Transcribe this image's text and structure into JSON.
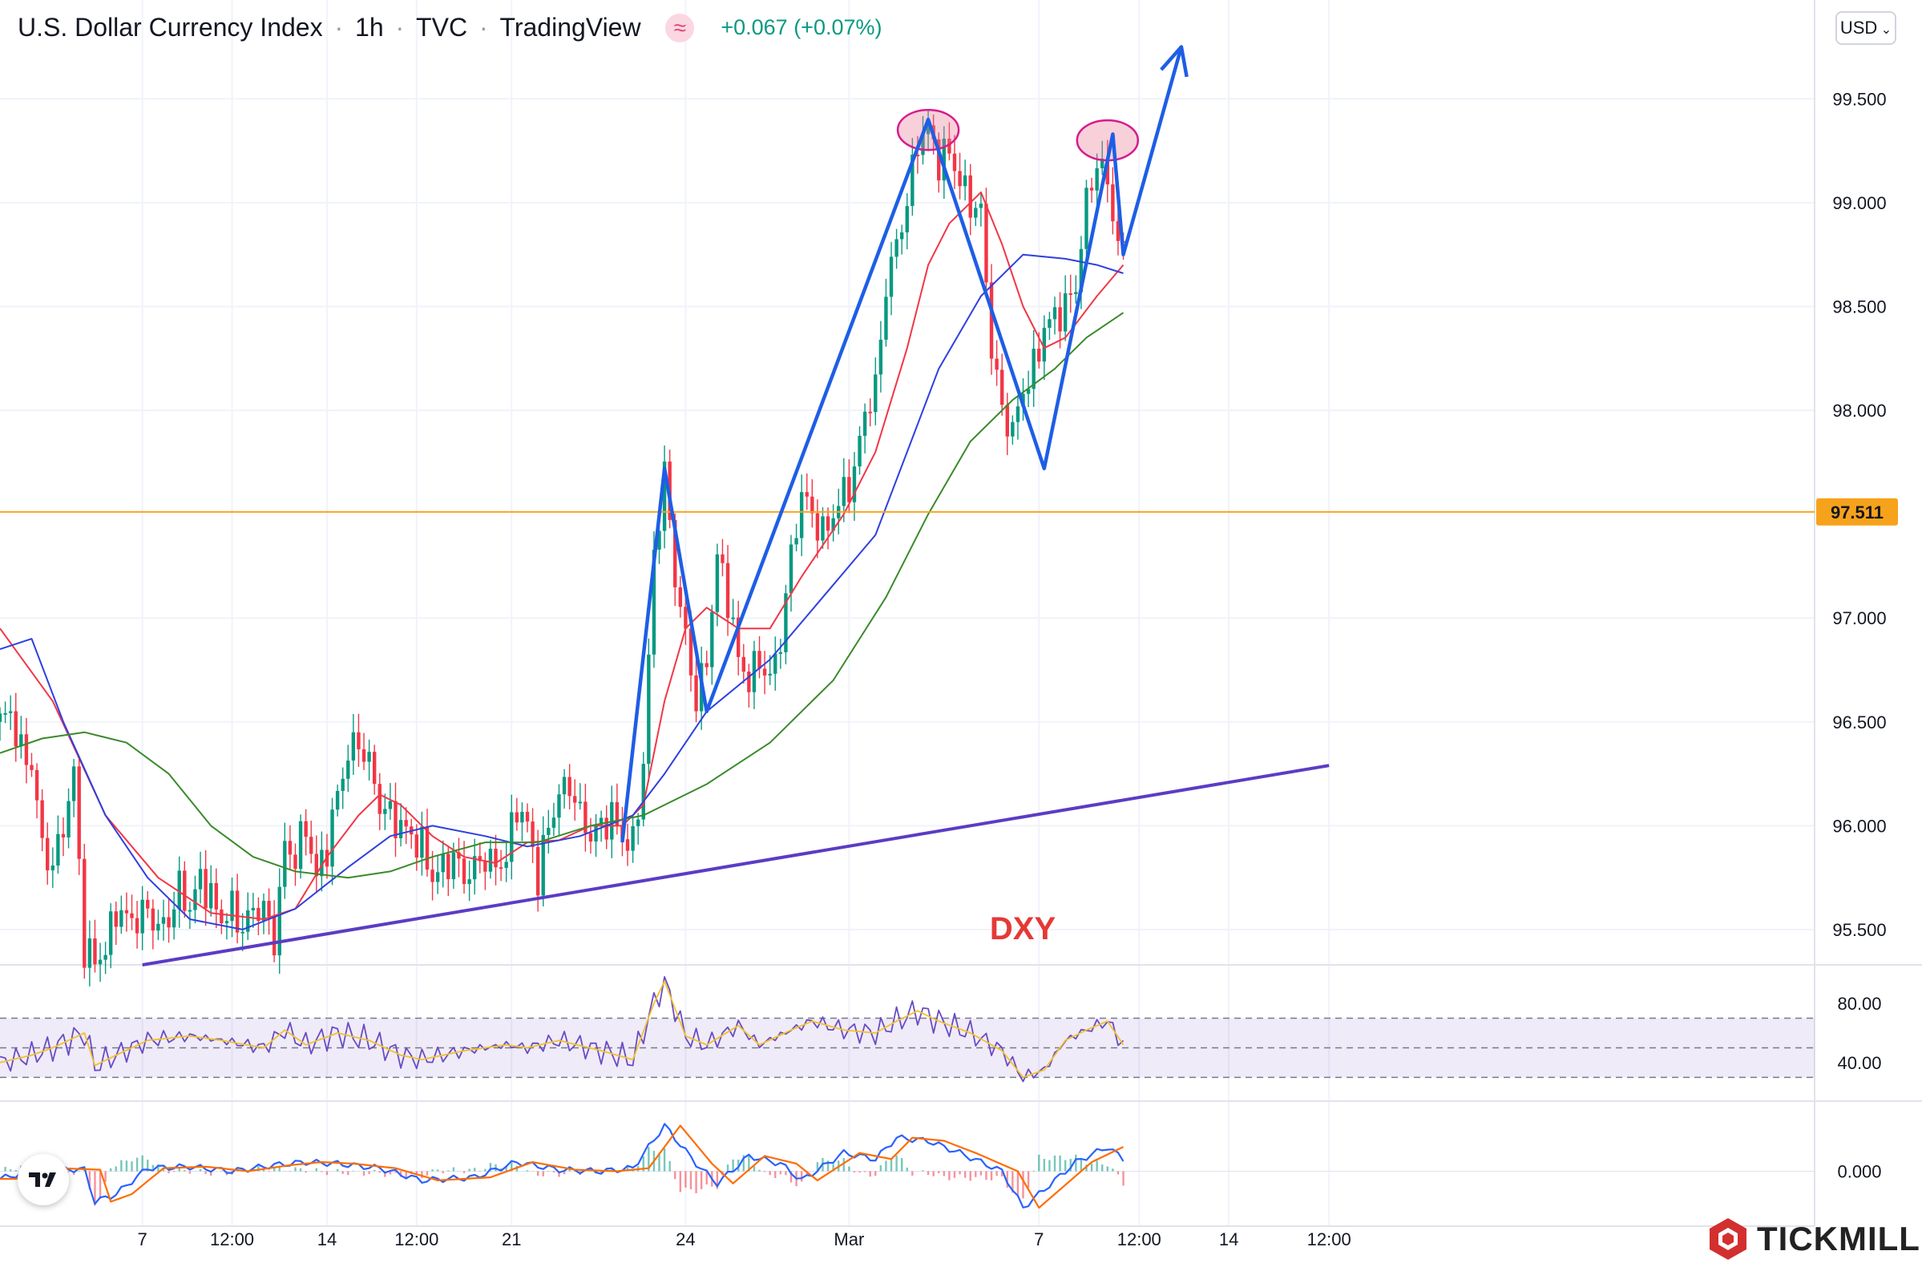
{
  "header": {
    "symbol": "U.S. Dollar Currency Index",
    "sep": "·",
    "interval": "1h",
    "exchange": "TVC",
    "source": "TradingView",
    "change": "+0.067 (+0.07%)"
  },
  "currency_button": "USD",
  "price_label": "97.511",
  "brand": "TICKMILL",
  "annotation": "DXY",
  "colors": {
    "up": "#089981",
    "down": "#f23645",
    "ma_fast": "#f23645",
    "ma_mid": "#2f3fe0",
    "ma_slow": "#3a8a2a",
    "pattern": "#1e5ee6",
    "trendline": "#5b3cc4",
    "level": "#f7a21b",
    "rsi": "#6a4bc4",
    "rsi_ma": "#f0c22b",
    "macd": "#2962ff",
    "signal": "#ff6d00"
  },
  "chart_data": {
    "type": "line",
    "title": "U.S. Dollar Currency Index · 1h · TVC",
    "price_axis": {
      "ylim": [
        95.33,
        99.86
      ],
      "ticks": [
        99.5,
        99.0,
        98.5,
        98.0,
        97.0,
        96.5,
        96.0,
        95.5
      ],
      "tick_labels": [
        "99.500",
        "99.000",
        "98.500",
        "98.000",
        "97.000",
        "96.500",
        "96.000",
        "95.500"
      ]
    },
    "time_axis": {
      "tick_labels": [
        "7",
        "12:00",
        "14",
        "12:00",
        "21",
        "24",
        "Mar",
        "7",
        "12:00",
        "14",
        "12:00"
      ],
      "tick_bars": [
        27,
        44,
        62,
        79,
        97,
        130,
        161,
        197,
        216,
        233,
        252
      ],
      "bar_count": 265
    },
    "price_path": [
      [
        0,
        96.5
      ],
      [
        2,
        96.55
      ],
      [
        4,
        96.35
      ],
      [
        6,
        96.3
      ],
      [
        8,
        95.9
      ],
      [
        10,
        95.8
      ],
      [
        12,
        96.0
      ],
      [
        14,
        96.25
      ],
      [
        16,
        95.4
      ],
      [
        18,
        95.35
      ],
      [
        20,
        95.4
      ],
      [
        22,
        95.6
      ],
      [
        24,
        95.55
      ],
      [
        26,
        95.55
      ],
      [
        28,
        95.6
      ],
      [
        30,
        95.5
      ],
      [
        32,
        95.55
      ],
      [
        34,
        95.7
      ],
      [
        36,
        95.6
      ],
      [
        38,
        95.75
      ],
      [
        40,
        95.65
      ],
      [
        42,
        95.55
      ],
      [
        44,
        95.6
      ],
      [
        46,
        95.5
      ],
      [
        48,
        95.6
      ],
      [
        50,
        95.6
      ],
      [
        52,
        95.45
      ],
      [
        54,
        95.9
      ],
      [
        56,
        95.85
      ],
      [
        58,
        96.0
      ],
      [
        60,
        95.75
      ],
      [
        62,
        95.9
      ],
      [
        64,
        96.15
      ],
      [
        66,
        96.35
      ],
      [
        68,
        96.4
      ],
      [
        70,
        96.3
      ],
      [
        72,
        96.1
      ],
      [
        74,
        96.05
      ],
      [
        76,
        96.0
      ],
      [
        78,
        95.95
      ],
      [
        80,
        95.9
      ],
      [
        82,
        95.75
      ],
      [
        84,
        95.8
      ],
      [
        86,
        95.85
      ],
      [
        88,
        95.75
      ],
      [
        90,
        95.8
      ],
      [
        92,
        95.85
      ],
      [
        94,
        95.8
      ],
      [
        96,
        95.85
      ],
      [
        98,
        96.1
      ],
      [
        100,
        96.0
      ],
      [
        102,
        95.75
      ],
      [
        104,
        96.0
      ],
      [
        106,
        96.15
      ],
      [
        108,
        96.2
      ],
      [
        110,
        96.05
      ],
      [
        112,
        95.95
      ],
      [
        114,
        96.0
      ],
      [
        116,
        96.05
      ],
      [
        118,
        95.95
      ],
      [
        120,
        95.9
      ],
      [
        122,
        96.3
      ],
      [
        124,
        97.3
      ],
      [
        126,
        97.7
      ],
      [
        128,
        97.2
      ],
      [
        130,
        96.9
      ],
      [
        132,
        96.6
      ],
      [
        134,
        96.8
      ],
      [
        136,
        97.3
      ],
      [
        138,
        97.1
      ],
      [
        140,
        96.8
      ],
      [
        142,
        96.7
      ],
      [
        144,
        96.8
      ],
      [
        146,
        96.7
      ],
      [
        148,
        96.9
      ],
      [
        150,
        97.3
      ],
      [
        152,
        97.6
      ],
      [
        154,
        97.5
      ],
      [
        156,
        97.4
      ],
      [
        158,
        97.5
      ],
      [
        160,
        97.6
      ],
      [
        162,
        97.7
      ],
      [
        164,
        98.0
      ],
      [
        166,
        98.1
      ],
      [
        168,
        98.6
      ],
      [
        170,
        98.8
      ],
      [
        172,
        99.0
      ],
      [
        174,
        99.3
      ],
      [
        176,
        99.35
      ],
      [
        178,
        99.2
      ],
      [
        180,
        99.25
      ],
      [
        182,
        99.1
      ],
      [
        184,
        99.0
      ],
      [
        186,
        98.95
      ],
      [
        188,
        98.3
      ],
      [
        190,
        98.0
      ],
      [
        192,
        97.9
      ],
      [
        194,
        98.1
      ],
      [
        196,
        98.2
      ],
      [
        198,
        98.4
      ],
      [
        200,
        98.45
      ],
      [
        202,
        98.5
      ],
      [
        204,
        98.6
      ],
      [
        206,
        99.0
      ],
      [
        208,
        99.2
      ],
      [
        210,
        99.1
      ],
      [
        212,
        98.8
      ],
      [
        213,
        98.75
      ]
    ],
    "series": [
      {
        "name": "MA fast (red)",
        "points": [
          [
            0,
            96.95
          ],
          [
            10,
            96.6
          ],
          [
            20,
            96.05
          ],
          [
            30,
            95.75
          ],
          [
            40,
            95.58
          ],
          [
            50,
            95.55
          ],
          [
            56,
            95.6
          ],
          [
            62,
            95.85
          ],
          [
            68,
            96.05
          ],
          [
            72,
            96.15
          ],
          [
            76,
            96.1
          ],
          [
            82,
            95.95
          ],
          [
            88,
            95.85
          ],
          [
            94,
            95.82
          ],
          [
            100,
            95.92
          ],
          [
            106,
            95.93
          ],
          [
            112,
            96.0
          ],
          [
            118,
            96.0
          ],
          [
            122,
            96.1
          ],
          [
            126,
            96.6
          ],
          [
            130,
            96.95
          ],
          [
            134,
            97.05
          ],
          [
            140,
            96.95
          ],
          [
            146,
            96.95
          ],
          [
            152,
            97.2
          ],
          [
            160,
            97.5
          ],
          [
            166,
            97.8
          ],
          [
            172,
            98.3
          ],
          [
            176,
            98.7
          ],
          [
            180,
            98.9
          ],
          [
            186,
            99.05
          ],
          [
            190,
            98.8
          ],
          [
            194,
            98.5
          ],
          [
            198,
            98.3
          ],
          [
            202,
            98.35
          ],
          [
            208,
            98.55
          ],
          [
            213,
            98.7
          ]
        ]
      },
      {
        "name": "MA mid (blue)",
        "points": [
          [
            0,
            96.85
          ],
          [
            6,
            96.9
          ],
          [
            12,
            96.5
          ],
          [
            20,
            96.05
          ],
          [
            28,
            95.75
          ],
          [
            36,
            95.55
          ],
          [
            46,
            95.5
          ],
          [
            56,
            95.6
          ],
          [
            66,
            95.8
          ],
          [
            74,
            95.95
          ],
          [
            82,
            96.0
          ],
          [
            92,
            95.95
          ],
          [
            100,
            95.9
          ],
          [
            110,
            95.95
          ],
          [
            120,
            96.05
          ],
          [
            126,
            96.25
          ],
          [
            134,
            96.55
          ],
          [
            146,
            96.8
          ],
          [
            156,
            97.1
          ],
          [
            166,
            97.4
          ],
          [
            172,
            97.8
          ],
          [
            178,
            98.2
          ],
          [
            186,
            98.55
          ],
          [
            194,
            98.75
          ],
          [
            202,
            98.73
          ],
          [
            208,
            98.7
          ],
          [
            213,
            98.66
          ]
        ]
      },
      {
        "name": "MA slow (green)",
        "points": [
          [
            0,
            96.35
          ],
          [
            8,
            96.42
          ],
          [
            16,
            96.45
          ],
          [
            24,
            96.4
          ],
          [
            32,
            96.25
          ],
          [
            40,
            96.0
          ],
          [
            48,
            95.85
          ],
          [
            56,
            95.78
          ],
          [
            66,
            95.75
          ],
          [
            74,
            95.78
          ],
          [
            82,
            95.85
          ],
          [
            92,
            95.92
          ],
          [
            102,
            95.92
          ],
          [
            112,
            96.0
          ],
          [
            122,
            96.05
          ],
          [
            134,
            96.2
          ],
          [
            146,
            96.4
          ],
          [
            158,
            96.7
          ],
          [
            168,
            97.1
          ],
          [
            176,
            97.5
          ],
          [
            184,
            97.85
          ],
          [
            192,
            98.05
          ],
          [
            200,
            98.2
          ],
          [
            206,
            98.35
          ],
          [
            213,
            98.47
          ]
        ]
      },
      {
        "name": "Zigzag pattern",
        "points": [
          [
            118,
            95.92
          ],
          [
            126,
            97.72
          ],
          [
            134,
            96.55
          ],
          [
            176,
            99.4
          ],
          [
            198,
            97.72
          ],
          [
            211,
            99.33
          ],
          [
            213,
            98.75
          ],
          [
            224,
            99.75
          ]
        ]
      },
      {
        "name": "Support trendline",
        "points": [
          [
            27,
            95.33
          ],
          [
            252,
            96.29
          ]
        ]
      }
    ],
    "horizontal_line": 97.511,
    "highlights": [
      {
        "x": 176,
        "y": 99.35
      },
      {
        "x": 210,
        "y": 99.3
      }
    ],
    "rsi": {
      "ylim": [
        15,
        105
      ],
      "ticks": [
        80,
        40
      ],
      "tick_labels": [
        "80.00",
        "40.00"
      ],
      "bands": [
        70,
        30
      ],
      "points": [
        [
          0,
          40
        ],
        [
          6,
          45
        ],
        [
          10,
          50
        ],
        [
          16,
          60
        ],
        [
          18,
          38
        ],
        [
          22,
          45
        ],
        [
          28,
          55
        ],
        [
          36,
          58
        ],
        [
          42,
          55
        ],
        [
          50,
          50
        ],
        [
          54,
          62
        ],
        [
          58,
          52
        ],
        [
          64,
          60
        ],
        [
          70,
          55
        ],
        [
          76,
          45
        ],
        [
          80,
          42
        ],
        [
          88,
          48
        ],
        [
          96,
          52
        ],
        [
          100,
          50
        ],
        [
          106,
          55
        ],
        [
          114,
          48
        ],
        [
          120,
          42
        ],
        [
          124,
          80
        ],
        [
          126,
          95
        ],
        [
          130,
          58
        ],
        [
          134,
          52
        ],
        [
          140,
          65
        ],
        [
          144,
          52
        ],
        [
          150,
          62
        ],
        [
          154,
          68
        ],
        [
          160,
          62
        ],
        [
          166,
          60
        ],
        [
          170,
          68
        ],
        [
          174,
          75
        ],
        [
          178,
          68
        ],
        [
          184,
          60
        ],
        [
          190,
          48
        ],
        [
          194,
          30
        ],
        [
          198,
          35
        ],
        [
          202,
          55
        ],
        [
          206,
          62
        ],
        [
          210,
          68
        ],
        [
          213,
          52
        ]
      ]
    },
    "macd": {
      "ylim": [
        -0.35,
        0.45
      ],
      "ticks": [
        0.0
      ],
      "tick_labels": [
        "0.000"
      ],
      "points": [
        [
          0,
          -0.05
        ],
        [
          8,
          0.02
        ],
        [
          16,
          0.01
        ],
        [
          18,
          -0.2
        ],
        [
          22,
          -0.15
        ],
        [
          28,
          0.02
        ],
        [
          36,
          0.03
        ],
        [
          44,
          0.0
        ],
        [
          52,
          0.04
        ],
        [
          58,
          0.06
        ],
        [
          64,
          0.05
        ],
        [
          72,
          0.02
        ],
        [
          80,
          -0.06
        ],
        [
          90,
          -0.04
        ],
        [
          98,
          0.06
        ],
        [
          106,
          0.01
        ],
        [
          114,
          0.0
        ],
        [
          120,
          0.02
        ],
        [
          126,
          0.3
        ],
        [
          132,
          0.05
        ],
        [
          136,
          -0.08
        ],
        [
          142,
          0.1
        ],
        [
          148,
          0.05
        ],
        [
          152,
          -0.06
        ],
        [
          160,
          0.12
        ],
        [
          166,
          0.08
        ],
        [
          170,
          0.22
        ],
        [
          176,
          0.2
        ],
        [
          182,
          0.12
        ],
        [
          190,
          0.0
        ],
        [
          194,
          -0.24
        ],
        [
          198,
          -0.12
        ],
        [
          204,
          0.06
        ],
        [
          210,
          0.16
        ],
        [
          213,
          0.08
        ]
      ]
    }
  }
}
